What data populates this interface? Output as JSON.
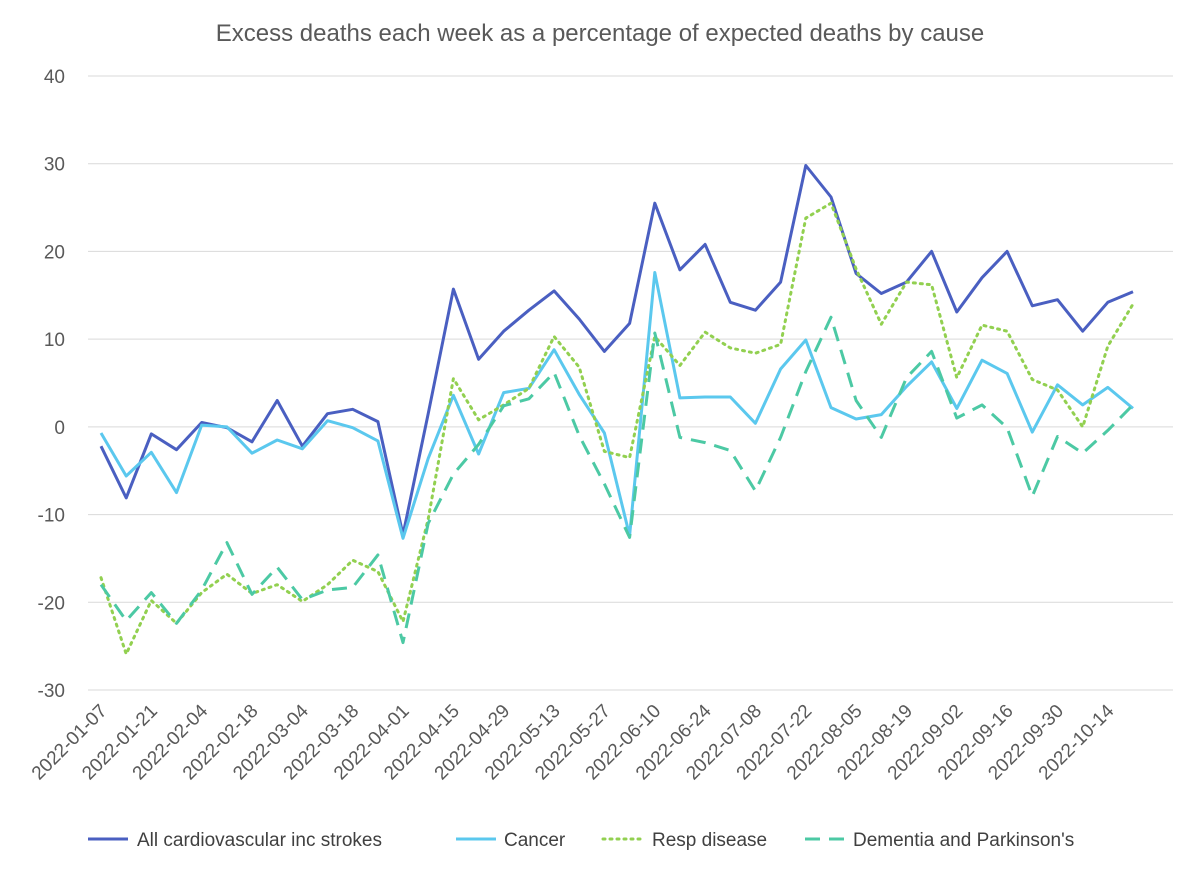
{
  "chart_data": {
    "type": "line",
    "title": "Excess deaths each week as a percentage of expected deaths by cause",
    "xlabel": "",
    "ylabel": "",
    "ylim": [
      -30,
      40
    ],
    "yticks": [
      40,
      30,
      20,
      10,
      0,
      -10,
      -20,
      -30
    ],
    "x": [
      "2022-01-07",
      "2022-01-14",
      "2022-01-21",
      "2022-01-28",
      "2022-02-04",
      "2022-02-11",
      "2022-02-18",
      "2022-02-25",
      "2022-03-04",
      "2022-03-11",
      "2022-03-18",
      "2022-03-25",
      "2022-04-01",
      "2022-04-08",
      "2022-04-15",
      "2022-04-22",
      "2022-04-29",
      "2022-05-06",
      "2022-05-13",
      "2022-05-20",
      "2022-05-27",
      "2022-06-03",
      "2022-06-10",
      "2022-06-17",
      "2022-06-24",
      "2022-07-01",
      "2022-07-08",
      "2022-07-15",
      "2022-07-22",
      "2022-07-29",
      "2022-08-05",
      "2022-08-12",
      "2022-08-19",
      "2022-08-26",
      "2022-09-02",
      "2022-09-09",
      "2022-09-16",
      "2022-09-23",
      "2022-09-30",
      "2022-10-07",
      "2022-10-14",
      "2022-10-21"
    ],
    "x_tick_labels": [
      "2022-01-07",
      "2022-01-21",
      "2022-02-04",
      "2022-02-18",
      "2022-03-04",
      "2022-03-18",
      "2022-04-01",
      "2022-04-15",
      "2022-04-29",
      "2022-05-13",
      "2022-05-27",
      "2022-06-10",
      "2022-06-24",
      "2022-07-08",
      "2022-07-22",
      "2022-08-05",
      "2022-08-19",
      "2022-09-02",
      "2022-09-16",
      "2022-09-30",
      "2022-10-14"
    ],
    "grid": true,
    "legend_position": "bottom",
    "series": [
      {
        "name": "All cardiovascular inc strokes",
        "color": "#4a5fc1",
        "dash": "solid",
        "values": [
          -2.2,
          -8.1,
          -0.8,
          -2.6,
          0.5,
          -0.1,
          -1.7,
          3.0,
          -2.2,
          1.5,
          2.0,
          0.6,
          -12.3,
          1.5,
          15.7,
          7.7,
          10.9,
          13.3,
          15.5,
          12.3,
          8.6,
          11.8,
          25.5,
          17.9,
          20.8,
          14.2,
          13.3,
          16.5,
          29.8,
          26.2,
          17.5,
          15.2,
          16.5,
          20.0,
          13.1,
          17.0,
          20.0,
          13.8,
          14.5,
          10.9,
          14.2,
          15.4
        ]
      },
      {
        "name": "Cancer",
        "color": "#5bc8ee",
        "dash": "solid",
        "values": [
          -0.7,
          -5.6,
          -2.9,
          -7.5,
          0.2,
          0.0,
          -3.0,
          -1.5,
          -2.5,
          0.7,
          -0.1,
          -1.6,
          -12.7,
          -3.6,
          3.6,
          -3.1,
          3.9,
          4.4,
          8.8,
          3.7,
          -0.7,
          -12.4,
          17.6,
          3.3,
          3.4,
          3.4,
          0.4,
          6.6,
          9.9,
          2.2,
          0.9,
          1.4,
          4.6,
          7.4,
          2.1,
          7.6,
          6.1,
          -0.6,
          4.8,
          2.5,
          4.5,
          2.1
        ]
      },
      {
        "name": "Resp disease",
        "color": "#92d050",
        "dash": "dotted",
        "values": [
          -17.2,
          -25.9,
          -19.8,
          -22.4,
          -18.9,
          -16.8,
          -19.0,
          -18.0,
          -19.9,
          -18.0,
          -15.2,
          -16.5,
          -22.2,
          -10.5,
          5.5,
          0.8,
          2.5,
          4.4,
          10.3,
          6.8,
          -2.8,
          -3.5,
          10.3,
          7.0,
          10.8,
          9.0,
          8.4,
          9.4,
          23.8,
          25.5,
          18.0,
          11.7,
          16.5,
          16.2,
          5.6,
          11.6,
          10.9,
          5.4,
          4.2,
          0.0,
          9.2,
          14.0
        ]
      },
      {
        "name": "Dementia and Parkinson's",
        "color": "#4cc9a4",
        "dash": "dashed",
        "values": [
          -18.0,
          -22.1,
          -18.9,
          -22.4,
          -18.6,
          -13.2,
          -19.1,
          -16.0,
          -19.7,
          -18.6,
          -18.3,
          -14.6,
          -24.6,
          -11.0,
          -5.4,
          -2.0,
          2.4,
          3.2,
          6.2,
          -1.0,
          -6.5,
          -12.6,
          10.7,
          -1.2,
          -1.8,
          -2.7,
          -7.3,
          -1.2,
          6.3,
          12.5,
          3.0,
          -1.2,
          5.6,
          8.6,
          1.0,
          2.5,
          -0.1,
          -7.9,
          -1.1,
          -3.0,
          -0.4,
          2.5
        ]
      }
    ]
  }
}
